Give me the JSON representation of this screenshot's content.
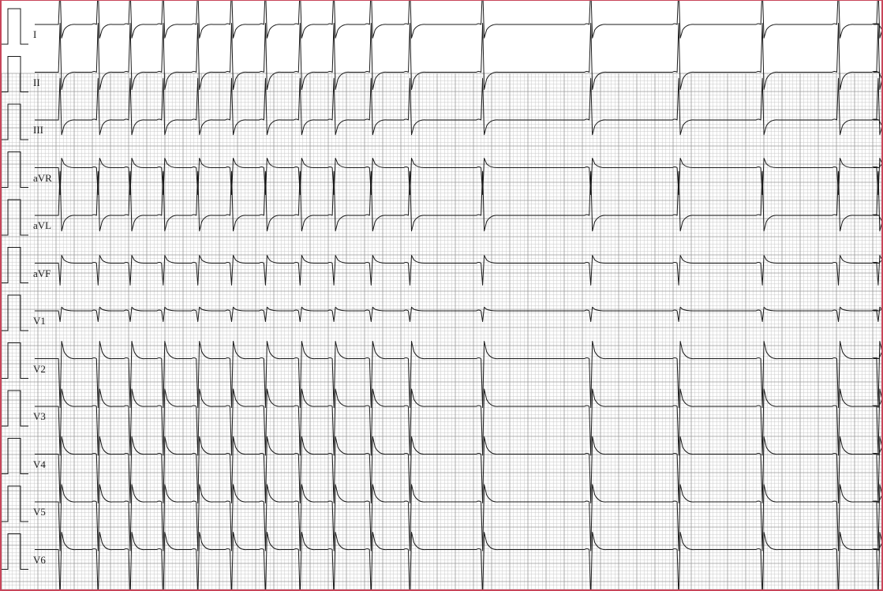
{
  "colors": {
    "frame_border": "#c8465a",
    "grid_minor": "#c9c9c9",
    "grid_major": "#9a9a9a",
    "trace": "#1a1a1a"
  },
  "leads": [
    {
      "label": "I",
      "polarity": "positive",
      "amplitude": 0.78
    },
    {
      "label": "II",
      "polarity": "positive",
      "amplitude": 1.0
    },
    {
      "label": "III",
      "polarity": "positive",
      "amplitude": 0.85
    },
    {
      "label": "aVR",
      "polarity": "negative",
      "amplitude": 0.55
    },
    {
      "label": "aVL",
      "polarity": "positive",
      "amplitude": 0.9
    },
    {
      "label": "aVF",
      "polarity": "negative",
      "amplitude": 0.45
    },
    {
      "label": "V1",
      "polarity": "negative",
      "amplitude": 0.22
    },
    {
      "label": "V2",
      "polarity": "negative",
      "amplitude": 1.0
    },
    {
      "label": "V3",
      "polarity": "negative",
      "amplitude": 1.0
    },
    {
      "label": "V4",
      "polarity": "negative",
      "amplitude": 1.0
    },
    {
      "label": "V5",
      "polarity": "negative",
      "amplitude": 1.0
    },
    {
      "label": "V6",
      "polarity": "negative",
      "amplitude": 1.0
    }
  ],
  "beats": [
    0.03,
    0.075,
    0.113,
    0.152,
    0.193,
    0.233,
    0.273,
    0.314,
    0.354,
    0.398,
    0.444,
    0.53,
    0.658,
    0.762,
    0.861,
    0.951,
    0.998
  ]
}
